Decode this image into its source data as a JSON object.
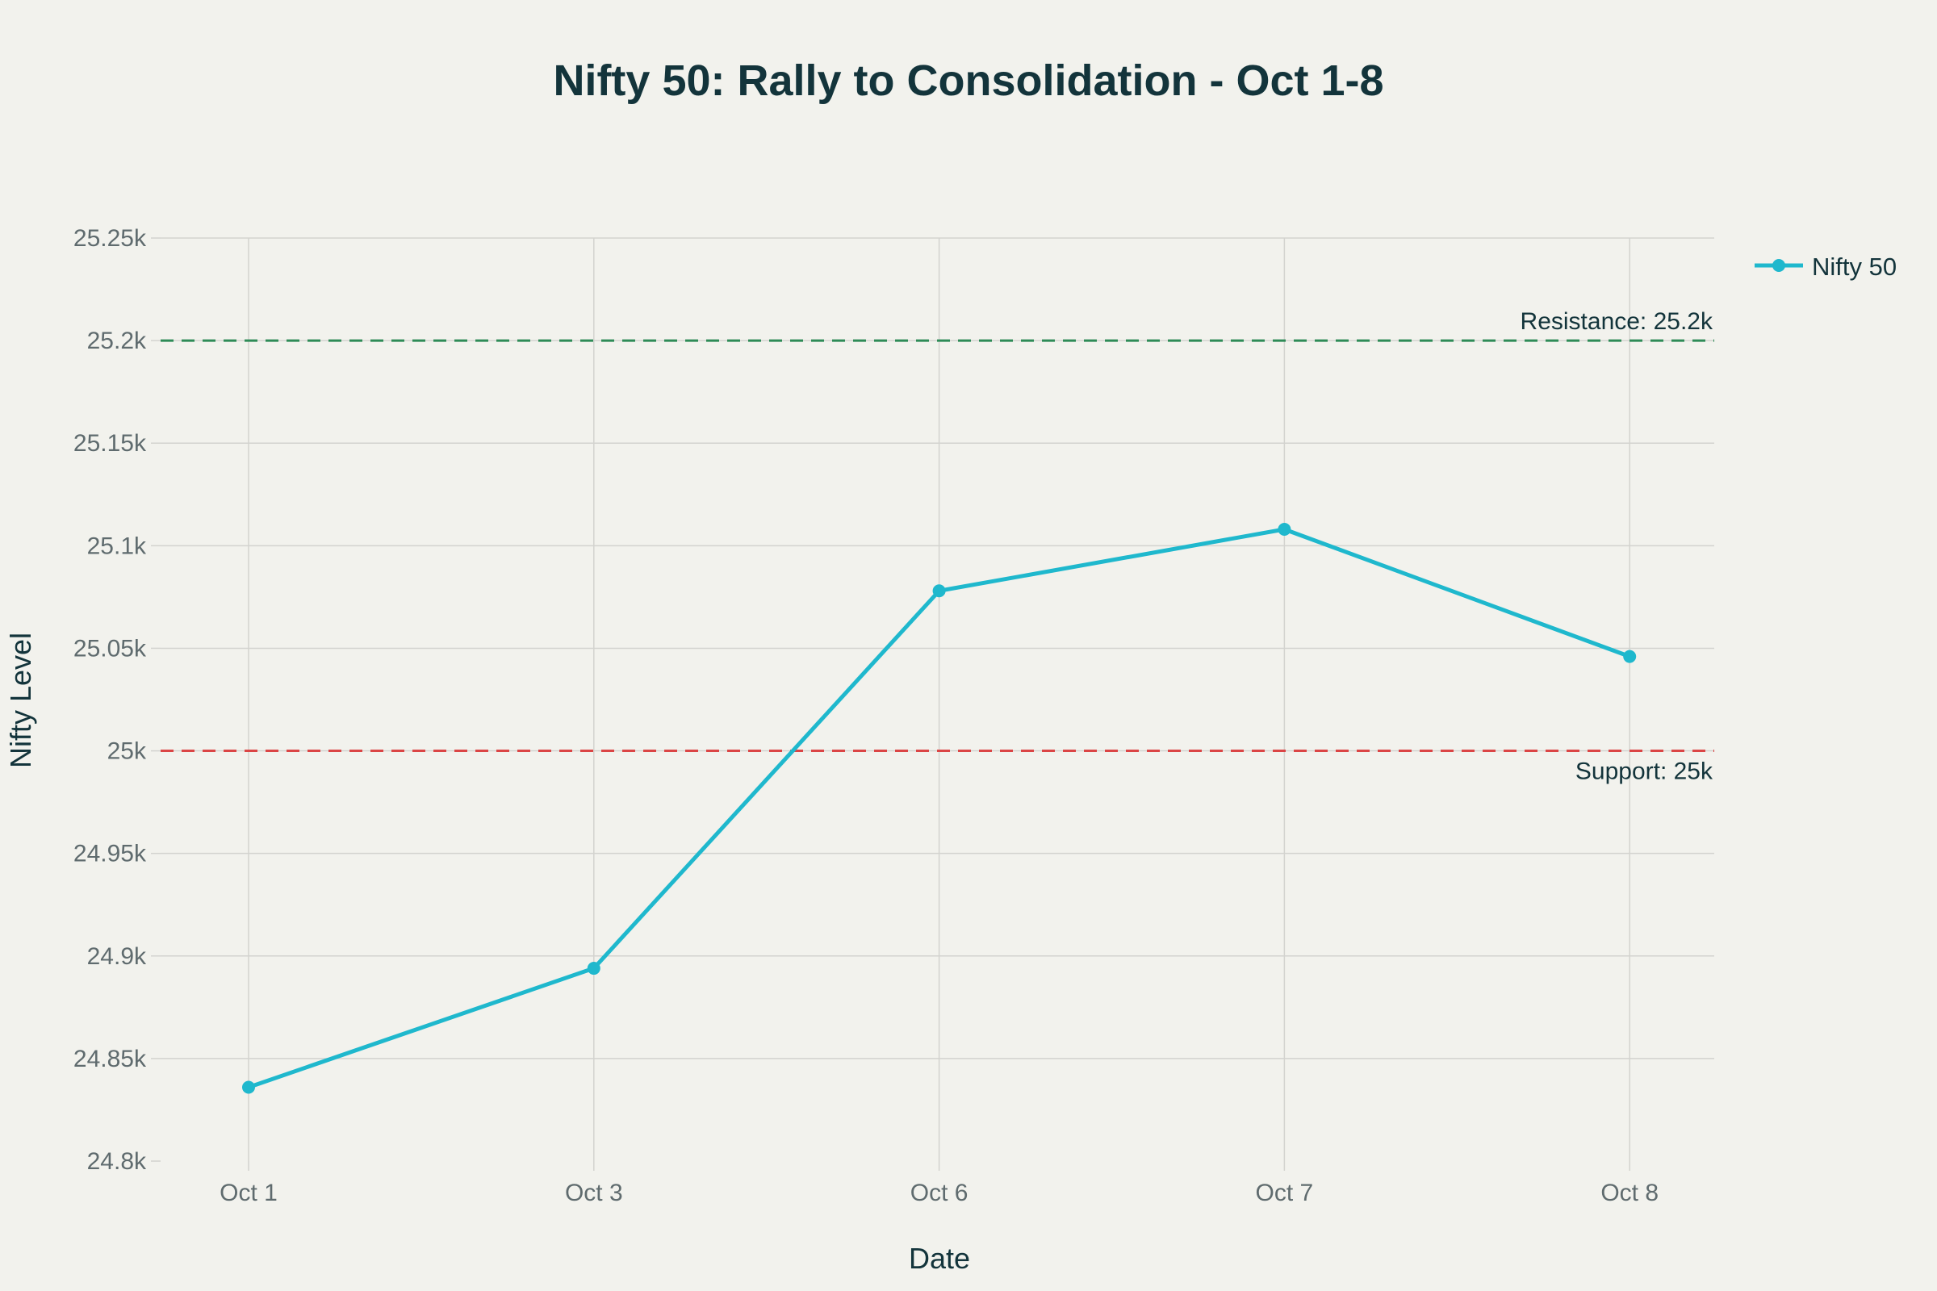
{
  "chart_data": {
    "type": "line",
    "title": "Nifty 50: Rally to Consolidation - Oct 1-8",
    "xlabel": "Date",
    "ylabel": "Nifty Level",
    "categories": [
      "Oct 1",
      "Oct 3",
      "Oct 6",
      "Oct 7",
      "Oct 8"
    ],
    "series": [
      {
        "name": "Nifty 50",
        "color": "#1fb8cd",
        "values": [
          24836,
          24894,
          25078,
          25108,
          25046
        ]
      }
    ],
    "ylim": [
      24800,
      25250
    ],
    "yticks": [
      24800,
      24850,
      24900,
      24950,
      25000,
      25050,
      25100,
      25150,
      25200,
      25250
    ],
    "ytick_labels": [
      "24.8k",
      "24.85k",
      "24.9k",
      "24.95k",
      "25k",
      "25.05k",
      "25.1k",
      "25.15k",
      "25.2k",
      "25.25k"
    ],
    "reference_lines": [
      {
        "label": "Resistance: 25.2k",
        "value": 25200,
        "color": "#2e8b57",
        "label_position": "above"
      },
      {
        "label": "Support: 25k",
        "value": 25000,
        "color": "#db4545",
        "label_position": "below"
      }
    ],
    "grid": true,
    "legend": "top-right"
  }
}
